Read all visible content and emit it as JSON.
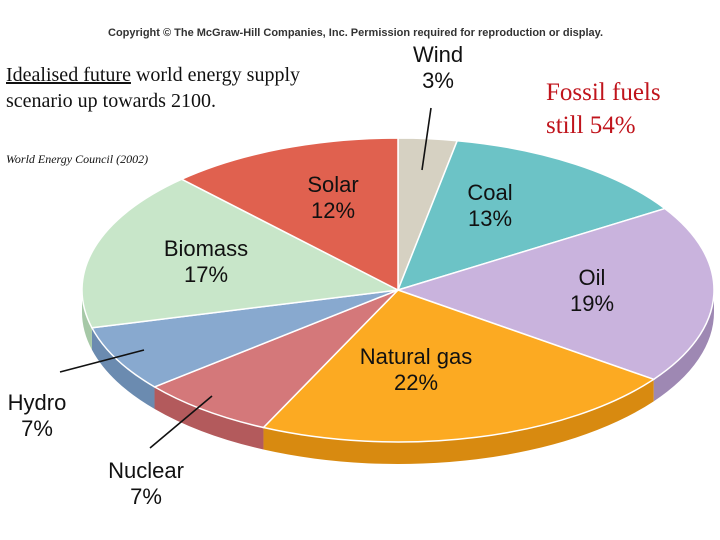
{
  "header": {
    "copyright": "Copyright © The McGraw-Hill Companies, Inc. Permission required for reproduction or display."
  },
  "caption": {
    "underlined": "Idealised future",
    "rest": " world energy supply scenario up towards 2100.",
    "source": "World Energy Council (2002)"
  },
  "note": {
    "line1": "Fossil fuels",
    "line2": "still 54%"
  },
  "chart_data": {
    "type": "pie",
    "title": "",
    "slices": [
      {
        "name": "Wind",
        "value": 3,
        "label": "3%",
        "color": "#d6d1c2",
        "side": "#a9a596"
      },
      {
        "name": "Coal",
        "value": 13,
        "label": "13%",
        "color": "#6cc3c6",
        "side": "#4f9a9c"
      },
      {
        "name": "Oil",
        "value": 19,
        "label": "19%",
        "color": "#c9b3dd",
        "side": "#9e88b3"
      },
      {
        "name": "Natural gas",
        "value": 22,
        "label": "22%",
        "color": "#fcaa22",
        "side": "#d88a10"
      },
      {
        "name": "Nuclear",
        "value": 7,
        "label": "7%",
        "color": "#d4787a",
        "side": "#b35a5c"
      },
      {
        "name": "Hydro",
        "value": 7,
        "label": "7%",
        "color": "#88a9cf",
        "side": "#6b8bb0"
      },
      {
        "name": "Biomass",
        "value": 17,
        "label": "17%",
        "color": "#c8e6c9",
        "side": "#a6c8a7"
      },
      {
        "name": "Solar",
        "value": 12,
        "label": "12%",
        "color": "#e0614f",
        "side": "#bb4a3b"
      }
    ]
  }
}
